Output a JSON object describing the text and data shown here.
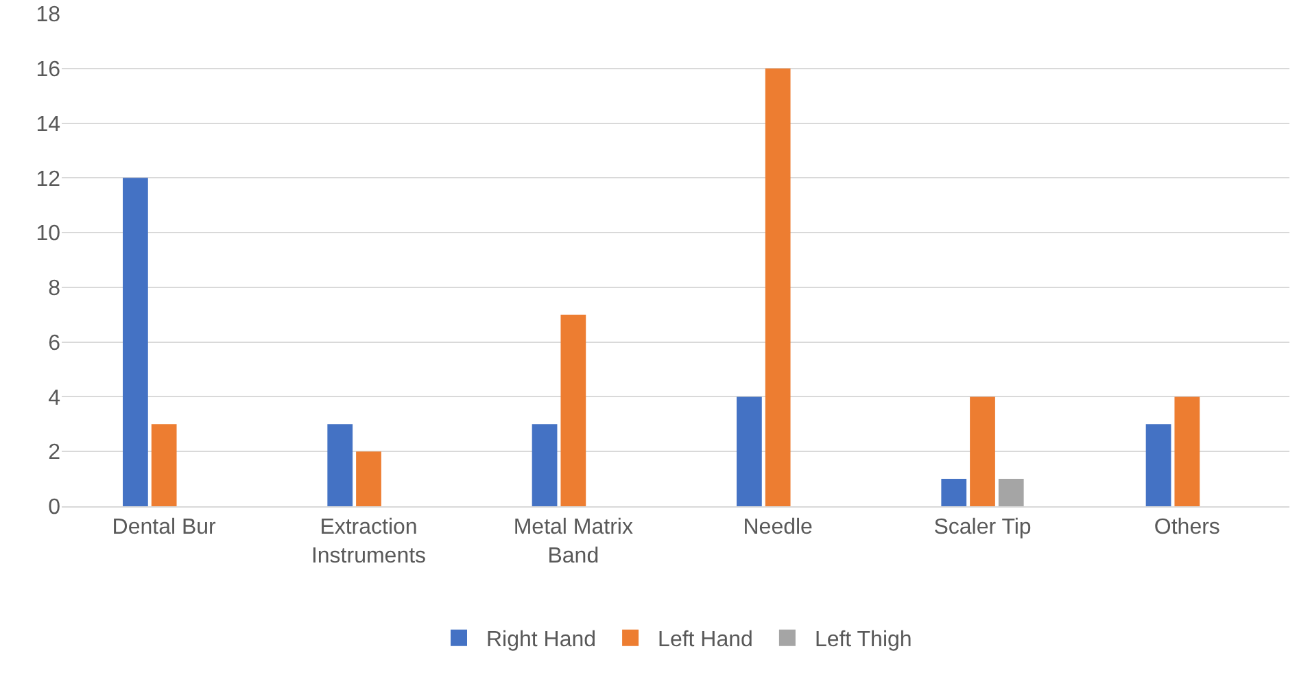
{
  "chart_data": {
    "type": "bar",
    "categories": [
      "Dental Bur",
      "Extraction Instruments",
      "Metal Matrix Band",
      "Needle",
      "Scaler Tip",
      "Others"
    ],
    "series": [
      {
        "name": "Right Hand",
        "color": "#4472c4",
        "values": [
          12,
          3,
          3,
          4,
          1,
          3
        ]
      },
      {
        "name": "Left Hand",
        "color": "#ed7d31",
        "values": [
          3,
          2,
          7,
          16,
          4,
          4
        ]
      },
      {
        "name": "Left Thigh",
        "color": "#a5a5a5",
        "values": [
          null,
          null,
          null,
          null,
          1,
          null
        ]
      }
    ],
    "ylim": [
      0,
      18
    ],
    "yticks": [
      0,
      2,
      4,
      6,
      8,
      10,
      12,
      14,
      16,
      18
    ],
    "grid": "y",
    "legend": "bottom"
  }
}
